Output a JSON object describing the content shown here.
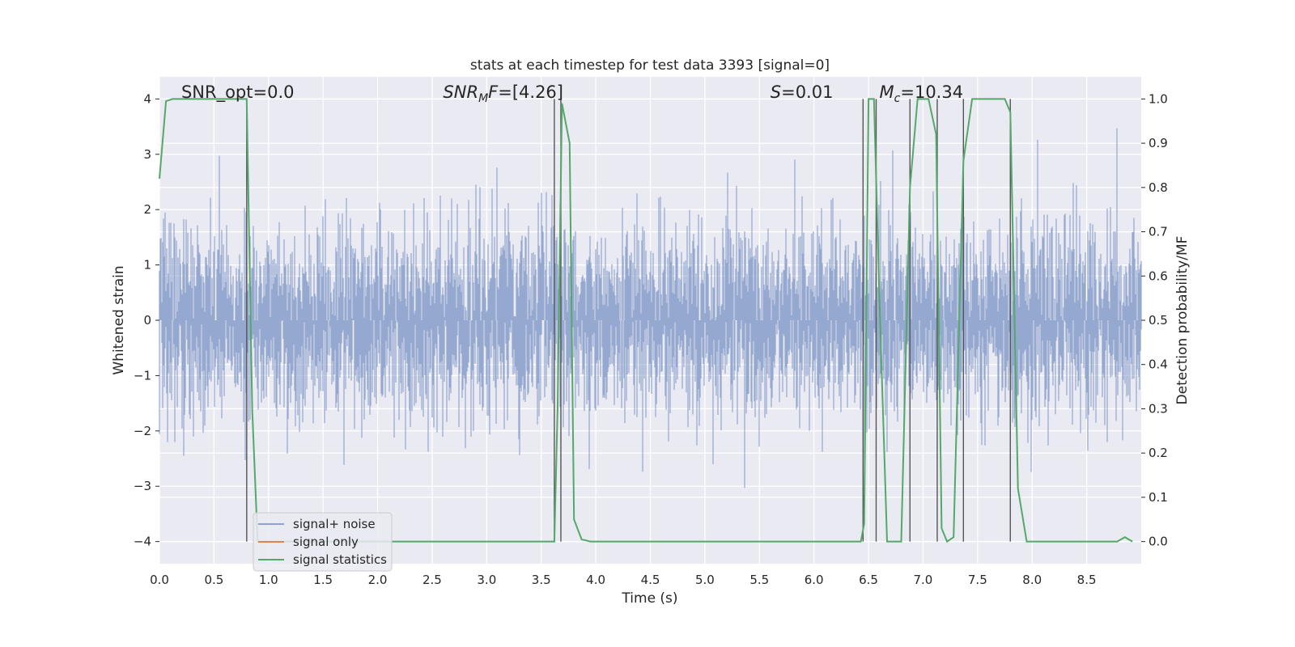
{
  "chart_data": {
    "type": "line",
    "title": "stats at each timestep for test data 3393 [signal=0]",
    "xlabel": "Time (s)",
    "ylabel_left": "Whitened strain",
    "ylabel_right": "Detection probability/MF",
    "xlim": [
      0.0,
      9.0
    ],
    "ylim_left": [
      -4.4,
      4.4
    ],
    "ylim_right": [
      -0.05,
      1.05
    ],
    "x_ticks": [
      "0.0",
      "0.5",
      "1.0",
      "1.5",
      "2.0",
      "2.5",
      "3.0",
      "3.5",
      "4.0",
      "4.5",
      "5.0",
      "5.5",
      "6.0",
      "6.5",
      "7.0",
      "7.5",
      "8.0",
      "8.5"
    ],
    "y_ticks_left": [
      "−4",
      "−3",
      "−2",
      "−1",
      "0",
      "1",
      "2",
      "3",
      "4"
    ],
    "y_ticks_right": [
      "0.0",
      "0.1",
      "0.2",
      "0.3",
      "0.4",
      "0.5",
      "0.6",
      "0.7",
      "0.8",
      "0.9",
      "1.0"
    ],
    "grid": true,
    "annotations": [
      {
        "text": "SNR_opt=0.0",
        "x": 0.2
      },
      {
        "main": "SNR",
        "sub": "M",
        "rest": "F=[4.26]",
        "x": 2.6
      },
      {
        "main": "S",
        "sub": "",
        "rest": "=0.01",
        "x": 5.6
      },
      {
        "main": "M",
        "sub": "c",
        "rest": "=10.34",
        "x": 6.6
      }
    ],
    "legend": {
      "position": "lower-left",
      "entries": [
        "signal+ noise",
        "signal only",
        "signal statistics"
      ]
    },
    "series": [
      {
        "name": "signal+ noise",
        "color": "#8fa4cd",
        "axis": "left",
        "kind": "noise",
        "std": 0.9,
        "xlim": [
          0,
          9
        ]
      },
      {
        "name": "signal only",
        "color": "#dd8452",
        "axis": "left",
        "values": []
      },
      {
        "name": "signal statistics",
        "color": "#55a868",
        "axis": "right",
        "x": [
          0.0,
          0.06,
          0.12,
          0.5,
          0.72,
          0.8,
          0.85,
          0.9,
          1.0,
          2.0,
          3.0,
          3.55,
          3.62,
          3.65,
          3.69,
          3.76,
          3.8,
          3.87,
          3.95,
          4.6,
          5.5,
          6.43,
          6.46,
          6.5,
          6.55,
          6.6,
          6.67,
          6.8,
          6.88,
          6.95,
          7.0,
          7.05,
          7.12,
          7.17,
          7.22,
          7.28,
          7.37,
          7.45,
          7.75,
          7.8,
          7.87,
          7.95,
          8.5,
          8.78,
          8.85,
          8.92
        ],
        "values": [
          0.82,
          0.995,
          1.0,
          1.0,
          1.0,
          1.0,
          0.3,
          0.0,
          0.0,
          0.0,
          0.0,
          0.0,
          0.0,
          0.3,
          0.99,
          0.9,
          0.05,
          0.005,
          0.0,
          0.0,
          0.0,
          0.0,
          0.04,
          1.0,
          1.0,
          0.55,
          0.0,
          0.0,
          0.8,
          1.0,
          1.0,
          1.0,
          0.92,
          0.03,
          0.0,
          0.01,
          0.86,
          1.0,
          1.0,
          0.97,
          0.12,
          0.0,
          0.0,
          0.0,
          0.01,
          0.0
        ]
      }
    ],
    "vlines": [
      0.8,
      3.62,
      3.68,
      6.45,
      6.57,
      6.88,
      7.13,
      7.37,
      7.8
    ]
  }
}
